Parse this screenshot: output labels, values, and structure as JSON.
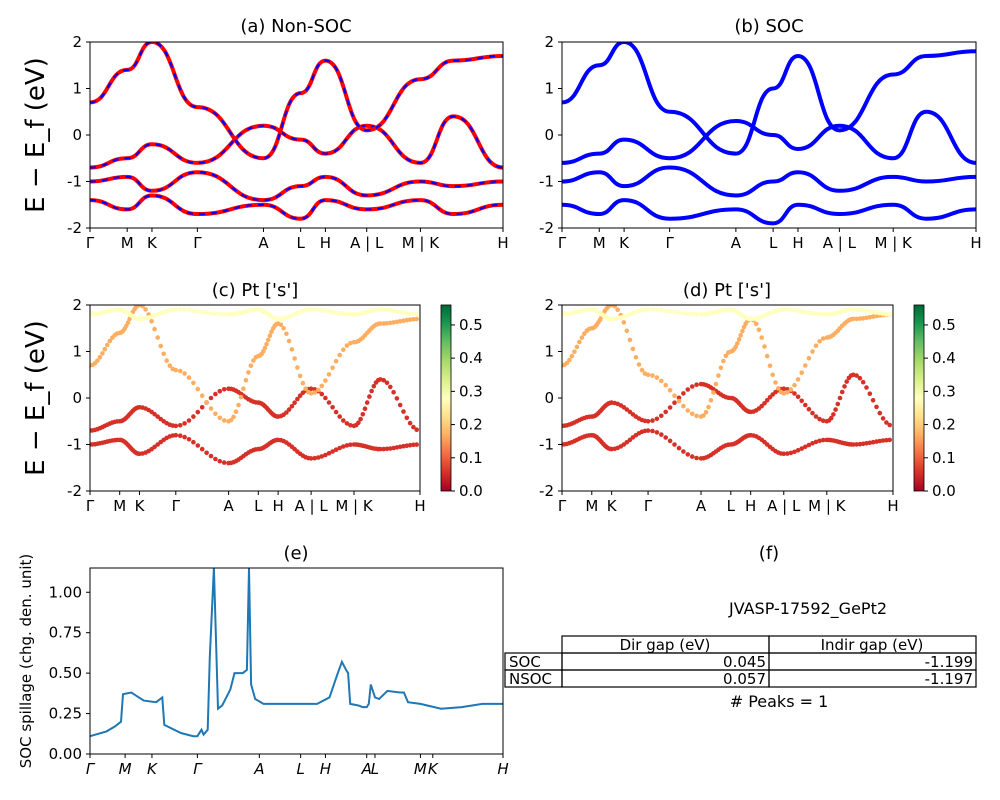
{
  "colors": {
    "nonsoc_solid": "#ff0000",
    "nonsoc_dash": "#0000ff",
    "soc": "#0000ff",
    "spillage": "#1f77b4",
    "colormap": [
      "#a50026",
      "#d73027",
      "#f46d43",
      "#fdae61",
      "#fee08b",
      "#ffffbf",
      "#d9ef8b",
      "#a6d96a",
      "#66bd63",
      "#1a9850",
      "#006837"
    ]
  },
  "band_ylabel": "E − E_f (eV)",
  "kpath_labels": [
    "Γ",
    "M",
    "K",
    "Γ",
    "A",
    "L",
    "H",
    "A | L",
    "M | K",
    "H"
  ],
  "panels": {
    "a": {
      "title": "(a) Non-SOC"
    },
    "b": {
      "title": "(b) SOC"
    },
    "c": {
      "title": "(c)  Pt ['s']"
    },
    "d": {
      "title": "(d) Pt ['s']"
    },
    "e": {
      "title": "(e)"
    },
    "f": {
      "title": "(f)"
    }
  },
  "colorbar": {
    "ticks": [
      "0.0",
      "0.1",
      "0.2",
      "0.3",
      "0.4",
      "0.5"
    ],
    "range": [
      0,
      0.56
    ]
  },
  "table": {
    "title": "JVASP-17592_GePt2",
    "headers": [
      "",
      "Dir gap (eV)",
      "Indir gap (eV)"
    ],
    "rows": [
      [
        "SOC",
        "0.045",
        "-1.199"
      ],
      [
        "NSOC",
        "0.057",
        "-1.197"
      ]
    ],
    "footer": "# Peaks = 1"
  },
  "chart_data": [
    {
      "type": "line",
      "title": "(a) Non-SOC",
      "ylabel": "E − E_f (eV)",
      "ylim": [
        -2,
        2
      ],
      "yticks": [
        -2,
        -1,
        0,
        1,
        2
      ],
      "xticklabels": [
        "Γ",
        "M",
        "K",
        "Γ",
        "A",
        "L",
        "H",
        "A | L",
        "M | K",
        "H"
      ],
      "series": [
        {
          "x": [
            0,
            0.09,
            0.15,
            0.26,
            0.42,
            0.51,
            0.57,
            0.67,
            0.8,
            0.88,
            1.0
          ],
          "values": [
            -0.7,
            -0.5,
            -0.2,
            -0.6,
            0.2,
            -0.1,
            -0.4,
            0.2,
            -0.6,
            0.4,
            -0.7
          ]
        },
        {
          "x": [
            0,
            0.09,
            0.15,
            0.26,
            0.42,
            0.51,
            0.57,
            0.67,
            0.8,
            0.88,
            1.0
          ],
          "values": [
            0.7,
            1.4,
            2.0,
            0.6,
            -0.5,
            0.9,
            1.6,
            0.1,
            1.2,
            1.6,
            1.7
          ]
        },
        {
          "x": [
            0,
            0.09,
            0.15,
            0.26,
            0.42,
            0.51,
            0.57,
            0.67,
            0.8,
            0.88,
            1.0
          ],
          "values": [
            -1.0,
            -0.9,
            -1.2,
            -0.8,
            -1.4,
            -1.1,
            -0.9,
            -1.3,
            -1.0,
            -1.1,
            -1.0
          ]
        },
        {
          "x": [
            0,
            0.09,
            0.15,
            0.26,
            0.42,
            0.51,
            0.57,
            0.67,
            0.8,
            0.88,
            1.0
          ],
          "values": [
            -1.4,
            -1.6,
            -1.3,
            -1.7,
            -1.5,
            -1.8,
            -1.4,
            -1.6,
            -1.4,
            -1.7,
            -1.5
          ]
        }
      ]
    },
    {
      "type": "line",
      "title": "(b) SOC",
      "ylim": [
        -2,
        2
      ],
      "yticks": [
        -2,
        -1,
        0,
        1,
        2
      ],
      "xticklabels": [
        "Γ",
        "M",
        "K",
        "Γ",
        "A",
        "L",
        "H",
        "A | L",
        "M | K",
        "H"
      ],
      "series": [
        {
          "x": [
            0,
            0.09,
            0.15,
            0.26,
            0.42,
            0.51,
            0.57,
            0.67,
            0.8,
            0.88,
            1.0
          ],
          "values": [
            -0.6,
            -0.4,
            -0.1,
            -0.5,
            0.3,
            0.0,
            -0.3,
            0.2,
            -0.5,
            0.5,
            -0.6
          ]
        },
        {
          "x": [
            0,
            0.09,
            0.15,
            0.26,
            0.42,
            0.51,
            0.57,
            0.67,
            0.8,
            0.88,
            1.0
          ],
          "values": [
            0.7,
            1.5,
            2.0,
            0.5,
            -0.4,
            1.0,
            1.7,
            0.1,
            1.3,
            1.7,
            1.8
          ]
        },
        {
          "x": [
            0,
            0.09,
            0.15,
            0.26,
            0.42,
            0.51,
            0.57,
            0.67,
            0.8,
            0.88,
            1.0
          ],
          "values": [
            -1.0,
            -0.8,
            -1.1,
            -0.7,
            -1.3,
            -1.0,
            -0.8,
            -1.2,
            -0.9,
            -1.0,
            -0.9
          ]
        },
        {
          "x": [
            0,
            0.09,
            0.15,
            0.26,
            0.42,
            0.51,
            0.57,
            0.67,
            0.8,
            0.88,
            1.0
          ],
          "values": [
            -1.5,
            -1.7,
            -1.4,
            -1.8,
            -1.6,
            -1.9,
            -1.5,
            -1.7,
            -1.5,
            -1.8,
            -1.6
          ]
        }
      ]
    },
    {
      "type": "scatter",
      "title": "(c)  Pt ['s']",
      "ylim": [
        -2,
        2
      ],
      "yticks": [
        -2,
        -1,
        0,
        1,
        2
      ],
      "xticklabels": [
        "Γ",
        "M",
        "K",
        "Γ",
        "A",
        "L",
        "H",
        "A | L",
        "M | K",
        "H"
      ],
      "colorbar_range": [
        0,
        0.56
      ],
      "bands": [
        {
          "x": [
            0,
            0.09,
            0.15,
            0.26,
            0.42,
            0.51,
            0.57,
            0.67,
            0.8,
            0.88,
            1.0
          ],
          "values": [
            -0.7,
            -0.5,
            -0.2,
            -0.6,
            0.2,
            -0.1,
            -0.4,
            0.2,
            -0.6,
            0.4,
            -0.7
          ],
          "weight": 0.05
        },
        {
          "x": [
            0,
            0.09,
            0.15,
            0.26,
            0.42,
            0.51,
            0.57,
            0.67,
            0.8,
            0.88,
            1.0
          ],
          "values": [
            0.7,
            1.4,
            2.0,
            0.6,
            -0.5,
            0.9,
            1.6,
            0.1,
            1.2,
            1.6,
            1.7
          ],
          "weight": 0.15
        },
        {
          "x": [
            0,
            0.09,
            0.15,
            0.26,
            0.42,
            0.51,
            0.57,
            0.67,
            0.8,
            0.88,
            1.0
          ],
          "values": [
            -1.0,
            -0.9,
            -1.2,
            -0.8,
            -1.4,
            -1.1,
            -0.9,
            -1.3,
            -1.0,
            -1.1,
            -1.0
          ],
          "weight": 0.03
        },
        {
          "x": [
            0,
            0.09,
            0.15,
            0.26,
            0.42,
            0.51,
            0.57,
            0.67,
            0.8,
            0.88,
            1.0
          ],
          "values": [
            1.8,
            1.9,
            1.7,
            1.9,
            1.8,
            1.9,
            1.7,
            1.9,
            1.8,
            1.9,
            1.8
          ],
          "weight": 0.3
        }
      ]
    },
    {
      "type": "scatter",
      "title": "(d) Pt ['s']",
      "ylim": [
        -2,
        2
      ],
      "yticks": [
        -2,
        -1,
        0,
        1,
        2
      ],
      "xticklabels": [
        "Γ",
        "M",
        "K",
        "Γ",
        "A",
        "L",
        "H",
        "A | L",
        "M | K",
        "H"
      ],
      "colorbar_range": [
        0,
        0.56
      ],
      "bands": [
        {
          "x": [
            0,
            0.09,
            0.15,
            0.26,
            0.42,
            0.51,
            0.57,
            0.67,
            0.8,
            0.88,
            1.0
          ],
          "values": [
            -0.6,
            -0.4,
            -0.1,
            -0.5,
            0.3,
            0.0,
            -0.3,
            0.2,
            -0.5,
            0.5,
            -0.6
          ],
          "weight": 0.05
        },
        {
          "x": [
            0,
            0.09,
            0.15,
            0.26,
            0.42,
            0.51,
            0.57,
            0.67,
            0.8,
            0.88,
            1.0
          ],
          "values": [
            0.7,
            1.5,
            2.0,
            0.5,
            -0.4,
            1.0,
            1.7,
            0.1,
            1.3,
            1.7,
            1.8
          ],
          "weight": 0.15
        },
        {
          "x": [
            0,
            0.09,
            0.15,
            0.26,
            0.42,
            0.51,
            0.57,
            0.67,
            0.8,
            0.88,
            1.0
          ],
          "values": [
            -1.0,
            -0.8,
            -1.1,
            -0.7,
            -1.3,
            -1.0,
            -0.8,
            -1.2,
            -0.9,
            -1.0,
            -0.9
          ],
          "weight": 0.03
        },
        {
          "x": [
            0,
            0.09,
            0.15,
            0.26,
            0.42,
            0.51,
            0.57,
            0.67,
            0.8,
            0.88,
            1.0
          ],
          "values": [
            1.8,
            1.9,
            1.7,
            1.9,
            1.8,
            1.9,
            1.7,
            1.9,
            1.8,
            1.9,
            1.8
          ],
          "weight": 0.3
        }
      ]
    },
    {
      "type": "line",
      "title": "(e)",
      "ylabel": "SOC spillage (chg. den. unit)",
      "ylim": [
        0,
        1.15
      ],
      "yticks": [
        "0.00",
        "0.25",
        "0.50",
        "0.75",
        "1.00"
      ],
      "xticklabels": [
        "Γ",
        "M",
        "K",
        "Γ",
        "A",
        "L",
        "H",
        "A",
        "L",
        "M",
        "K",
        "H"
      ],
      "x": [
        0.0,
        0.04,
        0.06,
        0.075,
        0.08,
        0.1,
        0.13,
        0.16,
        0.175,
        0.18,
        0.22,
        0.25,
        0.26,
        0.27,
        0.275,
        0.285,
        0.29,
        0.3,
        0.31,
        0.315,
        0.32,
        0.34,
        0.35,
        0.36,
        0.37,
        0.38,
        0.385,
        0.39,
        0.4,
        0.42,
        0.45,
        0.5,
        0.55,
        0.58,
        0.6,
        0.61,
        0.62,
        0.625,
        0.63,
        0.65,
        0.66,
        0.67,
        0.675,
        0.68,
        0.69,
        0.7,
        0.72,
        0.75,
        0.76,
        0.77,
        0.8,
        0.85,
        0.9,
        0.95,
        1.0
      ],
      "values": [
        0.11,
        0.14,
        0.17,
        0.2,
        0.37,
        0.38,
        0.33,
        0.32,
        0.35,
        0.18,
        0.13,
        0.11,
        0.11,
        0.15,
        0.12,
        0.15,
        0.6,
        1.15,
        0.28,
        0.29,
        0.3,
        0.4,
        0.5,
        0.5,
        0.5,
        0.52,
        1.15,
        0.43,
        0.34,
        0.31,
        0.31,
        0.31,
        0.31,
        0.35,
        0.5,
        0.57,
        0.52,
        0.5,
        0.31,
        0.3,
        0.29,
        0.29,
        0.31,
        0.43,
        0.35,
        0.34,
        0.39,
        0.38,
        0.38,
        0.32,
        0.31,
        0.28,
        0.29,
        0.31,
        0.31
      ]
    }
  ]
}
